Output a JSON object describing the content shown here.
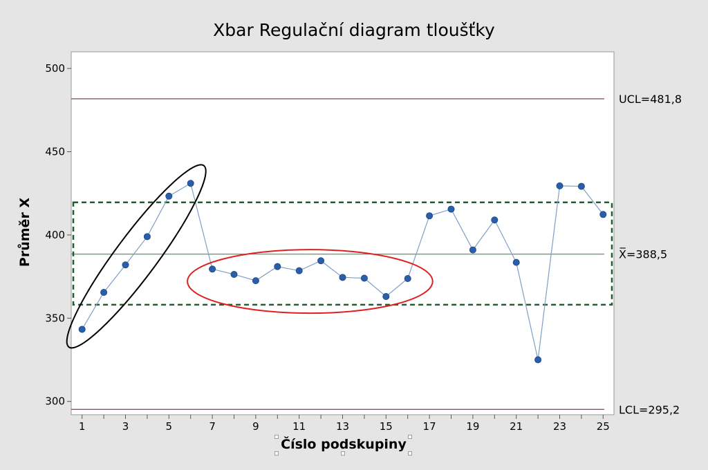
{
  "chart_data": {
    "type": "line",
    "title": "Xbar Regulační diagram tloušťky",
    "xlabel": "Číslo podskupiny",
    "ylabel": "Průměr X",
    "xlim": [
      0.5,
      25.5
    ],
    "ylim": [
      292,
      510
    ],
    "x_ticks": [
      1,
      3,
      5,
      7,
      9,
      11,
      13,
      15,
      17,
      19,
      21,
      23,
      25
    ],
    "x_tick_labels": [
      "1",
      "3",
      "5",
      "7",
      "9",
      "11",
      "13",
      "15",
      "17",
      "19",
      "21",
      "23",
      "25"
    ],
    "y_ticks": [
      300,
      350,
      400,
      450,
      500
    ],
    "y_tick_labels": [
      "300",
      "350",
      "400",
      "450",
      "500"
    ],
    "grid": false,
    "series": [
      {
        "x": [
          1,
          2,
          3,
          4,
          5,
          6,
          7,
          8,
          9,
          10,
          11,
          12,
          13,
          14,
          15,
          16,
          17,
          18,
          19,
          20,
          21,
          22,
          23,
          24,
          25
        ],
        "values": [
          343.3,
          365.5,
          382,
          399,
          423.3,
          431,
          379.5,
          376.3,
          372.5,
          381,
          378.5,
          384.5,
          374.5,
          374,
          363,
          373.8,
          411.5,
          415.5,
          391,
          409,
          383.5,
          325,
          429.5,
          429.2,
          412.3
        ],
        "color": "#2a5ea8",
        "line_color": "#7f9fc6"
      }
    ],
    "reference_lines": [
      {
        "label": "UCL=481,8",
        "value": 481.8,
        "color": "#7a5a6e"
      },
      {
        "label": "X̅=388,5",
        "value": 388.5,
        "color": "#5a9a5a"
      },
      {
        "label": "LCL=295,2",
        "value": 295.2,
        "color": "#7a5a6e"
      }
    ],
    "band": {
      "from": 358.1,
      "to": 419.6,
      "color": "#1f5e2e",
      "style": "dashed"
    },
    "annotations": [
      {
        "type": "ellipse",
        "color": "#000000",
        "points": [
          1,
          6
        ]
      },
      {
        "type": "ellipse",
        "color": "#e02020",
        "points": [
          7,
          16
        ]
      }
    ],
    "colors": {
      "background": "#e5e5e5",
      "plot_background": "#ffffff"
    }
  }
}
